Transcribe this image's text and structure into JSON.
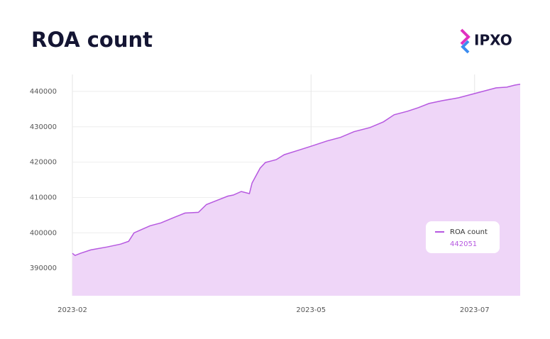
{
  "chart_data": {
    "type": "area",
    "title": "ROA count",
    "logo": "IPXO",
    "x": [
      0,
      1,
      3,
      7,
      13,
      18,
      21,
      23,
      26,
      29,
      33,
      38,
      42,
      47,
      50,
      54,
      58,
      60,
      63,
      66,
      67,
      70,
      72,
      76,
      79,
      84,
      89,
      95,
      100,
      105,
      111,
      116,
      120,
      125,
      129,
      133,
      138,
      144,
      149,
      154,
      158,
      162,
      165,
      167
    ],
    "series": [
      {
        "name": "ROA count",
        "color": "#b658e0",
        "values": [
          394200,
          393600,
          394200,
          395200,
          396000,
          396800,
          397600,
          400000,
          401000,
          402000,
          402800,
          404400,
          405600,
          405800,
          408000,
          409200,
          410400,
          410700,
          411700,
          411100,
          414100,
          418300,
          419900,
          420700,
          422100,
          423300,
          424500,
          426000,
          427000,
          428600,
          429800,
          431400,
          433400,
          434400,
          435400,
          436600,
          437400,
          438200,
          439200,
          440200,
          441000,
          441200,
          441800,
          442051
        ]
      }
    ],
    "xlim": [
      0,
      167
    ],
    "xticks": [
      {
        "value": 0,
        "label": "2023-02"
      },
      {
        "value": 89,
        "label": "2023-05"
      },
      {
        "value": 150,
        "label": "2023-07"
      }
    ],
    "ylim": [
      382200,
      444800
    ],
    "yticks": [
      390000,
      400000,
      410000,
      420000,
      430000,
      440000
    ],
    "grid": true,
    "fill_color": "#efd6f8"
  }
}
